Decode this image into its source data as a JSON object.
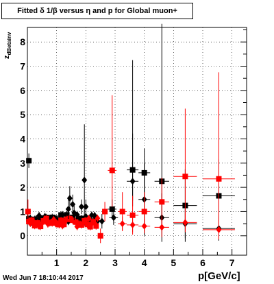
{
  "chart_data": {
    "type": "scatter",
    "title": "Fitted δ 1/β versus η and p for Global muon+",
    "xlabel": "p[GeV/c]",
    "ylabel_main": "z",
    "ylabel_sub": "dBetainv",
    "xlim": [
      0,
      7.5
    ],
    "ylim": [
      -0.8,
      8.6
    ],
    "xticks": [
      1,
      2,
      3,
      4,
      5,
      6,
      7
    ],
    "yticks": [
      0,
      1,
      2,
      3,
      4,
      5,
      6,
      7,
      8
    ],
    "grid": true,
    "legend": "none",
    "series": [
      {
        "color": "#000000",
        "markers": [
          {
            "x": 0.05,
            "y": 3.1,
            "m": "square",
            "xerr": 0.05,
            "yerr": [
              0.3,
              0.3
            ]
          },
          {
            "x": 2.9,
            "y": 1.1,
            "m": "square",
            "xerr": 0.15,
            "yerr": [
              0.4,
              0.4
            ]
          },
          {
            "x": 3.6,
            "y": 2.72,
            "m": "square",
            "xerr": 0.2,
            "yerr": [
              1.5,
              1.5
            ]
          },
          {
            "x": 4.0,
            "y": 2.6,
            "m": "square",
            "xerr": 0.2,
            "yerr": [
              1.0,
              1.0
            ]
          },
          {
            "x": 4.6,
            "y": 2.25,
            "m": "square",
            "xerr": 0.25,
            "yerr": [
              2.0,
              6.5
            ]
          },
          {
            "x": 5.4,
            "y": 1.25,
            "m": "square",
            "xerr": 0.4,
            "yerr": [
              1.5,
              1.5
            ]
          },
          {
            "x": 6.55,
            "y": 1.65,
            "m": "square",
            "xerr": 0.55,
            "yerr": [
              1.5,
              1.5
            ]
          },
          {
            "x": 2.95,
            "y": 0.75,
            "m": "diamond",
            "xerr": 0.15,
            "yerr": [
              0.3,
              0.3
            ]
          },
          {
            "x": 3.6,
            "y": 2.25,
            "m": "diamond",
            "xerr": 0.2,
            "yerr": [
              0.8,
              5.0
            ]
          },
          {
            "x": 4.0,
            "y": 1.5,
            "m": "diamond",
            "xerr": 0.2,
            "yerr": [
              1.5,
              1.5
            ]
          },
          {
            "x": 4.6,
            "y": 0.75,
            "m": "diamond",
            "xerr": 0.25,
            "yerr": [
              1.0,
              1.0
            ]
          },
          {
            "x": 5.4,
            "y": 0.5,
            "m": "diamond",
            "xerr": 0.4,
            "yerr": [
              0.6,
              0.6
            ]
          },
          {
            "x": 6.55,
            "y": 0.3,
            "m": "diamond",
            "xerr": 0.55,
            "yerr": [
              0.5,
              0.5
            ]
          },
          {
            "x": 1.45,
            "y": 1.55,
            "m": "diamond",
            "xerr": 0.03,
            "yerr": [
              0.5,
              0.5
            ]
          },
          {
            "x": 1.55,
            "y": 1.3,
            "m": "diamond",
            "xerr": 0.03,
            "yerr": [
              0.4,
              0.4
            ]
          },
          {
            "x": 1.4,
            "y": 1.1,
            "m": "diamond",
            "xerr": 0.03,
            "yerr": [
              0.4,
              0.4
            ]
          },
          {
            "x": 1.6,
            "y": 0.95,
            "m": "diamond",
            "xerr": 0.03,
            "yerr": [
              0.3,
              0.3
            ]
          },
          {
            "x": 1.85,
            "y": 1.2,
            "m": "diamond",
            "xerr": 0.04,
            "yerr": [
              0.3,
              0.3
            ]
          },
          {
            "x": 1.95,
            "y": 2.3,
            "m": "diamond",
            "xerr": 0.04,
            "yerr": [
              1.5,
              2.3
            ]
          },
          {
            "x": 2.0,
            "y": 1.2,
            "m": "diamond",
            "xerr": 0.04,
            "yerr": [
              0.3,
              0.3
            ]
          },
          {
            "x": 2.55,
            "y": 0.6,
            "m": "diamond",
            "xerr": 0.1,
            "yerr": [
              0.3,
              0.3
            ]
          }
        ]
      },
      {
        "color": "#ff0000",
        "markers": [
          {
            "x": 2.5,
            "y": 0.0,
            "m": "square",
            "xerr": 0.1,
            "yerr": [
              0.3,
              0.3
            ]
          },
          {
            "x": 2.65,
            "y": 1.0,
            "m": "square",
            "xerr": 0.1,
            "yerr": [
              0.4,
              0.4
            ]
          },
          {
            "x": 2.9,
            "y": 2.7,
            "m": "square",
            "xerr": 0.15,
            "yerr": [
              1.5,
              3.1
            ]
          },
          {
            "x": 3.25,
            "y": 1.0,
            "m": "square",
            "xerr": 0.15,
            "yerr": [
              0.8,
              0.8
            ]
          },
          {
            "x": 3.6,
            "y": 0.85,
            "m": "square",
            "xerr": 0.2,
            "yerr": [
              0.8,
              0.8
            ]
          },
          {
            "x": 4.0,
            "y": 1.0,
            "m": "square",
            "xerr": 0.2,
            "yerr": [
              0.8,
              0.8
            ]
          },
          {
            "x": 4.6,
            "y": 1.4,
            "m": "square",
            "xerr": 0.25,
            "yerr": [
              1.0,
              1.0
            ]
          },
          {
            "x": 5.4,
            "y": 2.45,
            "m": "square",
            "xerr": 0.4,
            "yerr": [
              2.0,
              2.8
            ]
          },
          {
            "x": 6.55,
            "y": 2.35,
            "m": "square",
            "xerr": 0.55,
            "yerr": [
              2.5,
              4.4
            ]
          },
          {
            "x": 3.25,
            "y": 0.5,
            "m": "diamond",
            "xerr": 0.15,
            "yerr": [
              0.3,
              0.3
            ]
          },
          {
            "x": 3.6,
            "y": 0.45,
            "m": "diamond",
            "xerr": 0.2,
            "yerr": [
              0.3,
              0.3
            ]
          },
          {
            "x": 4.0,
            "y": 0.4,
            "m": "diamond",
            "xerr": 0.2,
            "yerr": [
              0.3,
              0.3
            ]
          },
          {
            "x": 4.6,
            "y": 0.35,
            "m": "diamond",
            "xerr": 0.25,
            "yerr": [
              0.4,
              0.4
            ]
          },
          {
            "x": 5.4,
            "y": 0.55,
            "m": "diamond",
            "xerr": 0.4,
            "yerr": [
              0.4,
              0.4
            ]
          },
          {
            "x": 6.55,
            "y": 0.25,
            "m": "diamond",
            "xerr": 0.55,
            "yerr": [
              0.4,
              0.4
            ]
          },
          {
            "x": 0.02,
            "y": 1.0,
            "m": "square",
            "xerr": 0.02,
            "yerr": [
              0.5,
              0.5
            ]
          }
        ]
      }
    ],
    "low_p_cluster": {
      "x_range": [
        0.05,
        2.4
      ],
      "points_per_series": 48,
      "red_center": 0.55,
      "black_center": 0.7,
      "spread": 0.18
    }
  },
  "footer": "Wed Jun  7 18:10:44 2017"
}
